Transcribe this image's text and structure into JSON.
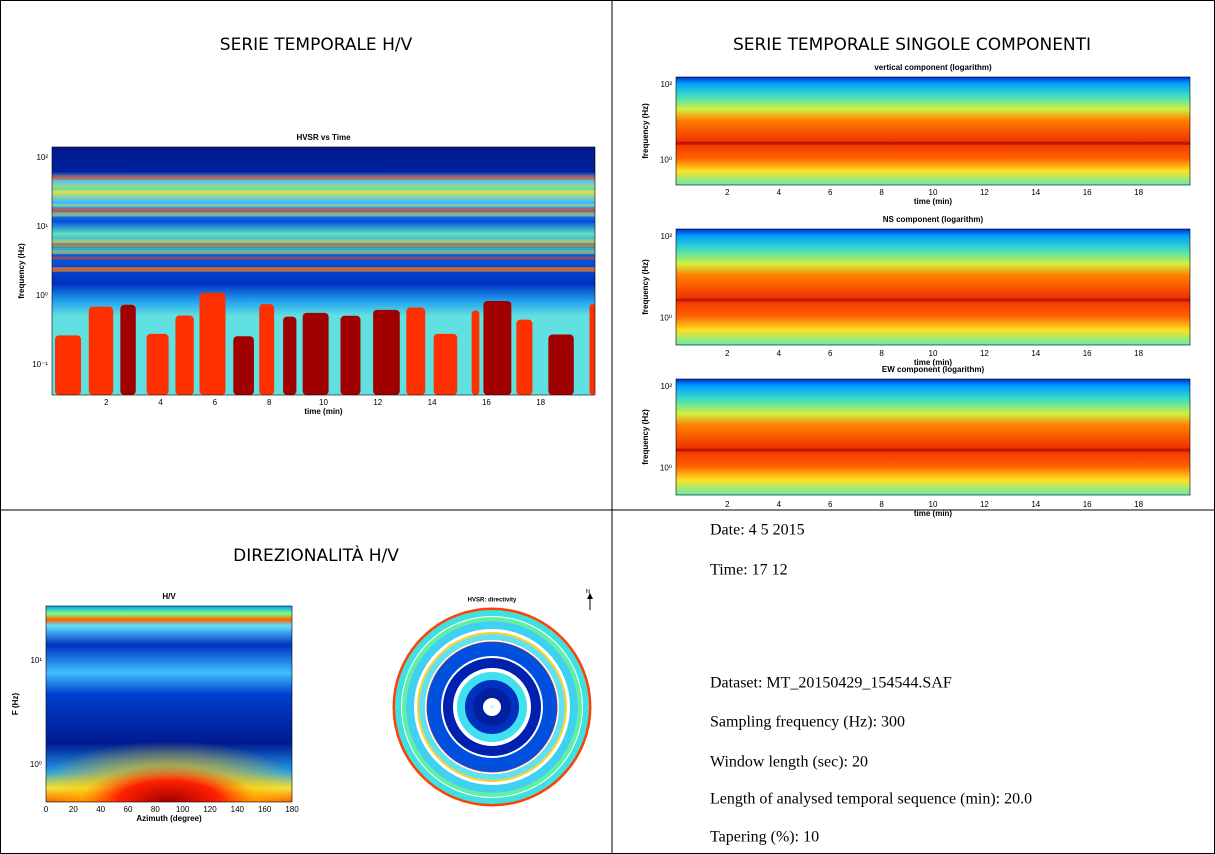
{
  "cells": [
    {
      "title": "SERIE TEMPORALE H/V",
      "plots": [
        {
          "title": "HVSR vs Time",
          "ylabel": "frequency (Hz)",
          "xlabel": "time (min)",
          "xticks": [
            "2",
            "4",
            "6",
            "8",
            "10",
            "12",
            "14",
            "16",
            "18"
          ],
          "yticks": [
            "10⁻¹",
            "10⁰",
            "10¹",
            "10²"
          ]
        }
      ]
    },
    {
      "title": "SERIE TEMPORALE SINGOLE COMPONENTI",
      "plots": [
        {
          "title": "vertical component (logarithm)",
          "ylabel": "frequency (Hz)",
          "xlabel": "time (min)",
          "xticks": [
            "2",
            "4",
            "6",
            "8",
            "10",
            "12",
            "14",
            "16",
            "18"
          ],
          "yticks": [
            "10⁰",
            "10²"
          ]
        },
        {
          "title": "NS component (logarithm)",
          "ylabel": "frequency (Hz)",
          "xlabel": "time (min)",
          "xticks": [
            "2",
            "4",
            "6",
            "8",
            "10",
            "12",
            "14",
            "16",
            "18"
          ],
          "yticks": [
            "10⁰",
            "10²"
          ]
        },
        {
          "title": "EW component (logarithm)",
          "ylabel": "frequency (Hz)",
          "xlabel": "time (min)",
          "xticks": [
            "2",
            "4",
            "6",
            "8",
            "10",
            "12",
            "14",
            "16",
            "18"
          ],
          "yticks": [
            "10⁰",
            "10²"
          ]
        }
      ]
    },
    {
      "title": "DIREZIONALITÀ H/V",
      "plots": [
        {
          "title": "H/V",
          "ylabel": "F (Hz)",
          "xlabel": "Azimuth (degree)",
          "xticks": [
            "0",
            "20",
            "40",
            "60",
            "80",
            "100",
            "120",
            "140",
            "160",
            "180"
          ],
          "yticks": [
            "10⁰",
            "10¹"
          ]
        },
        {
          "title": "HVSR: directivity",
          "north": "N"
        }
      ]
    }
  ],
  "info": [
    "Date: 4 5 2015",
    "Time: 17 12",
    "Dataset: MT_20150429_154544.SAF",
    "Sampling frequency (Hz): 300",
    "Window length (sec): 20",
    "Length of analysed temporal sequence (min): 20.0",
    "Tapering (%): 10"
  ]
}
